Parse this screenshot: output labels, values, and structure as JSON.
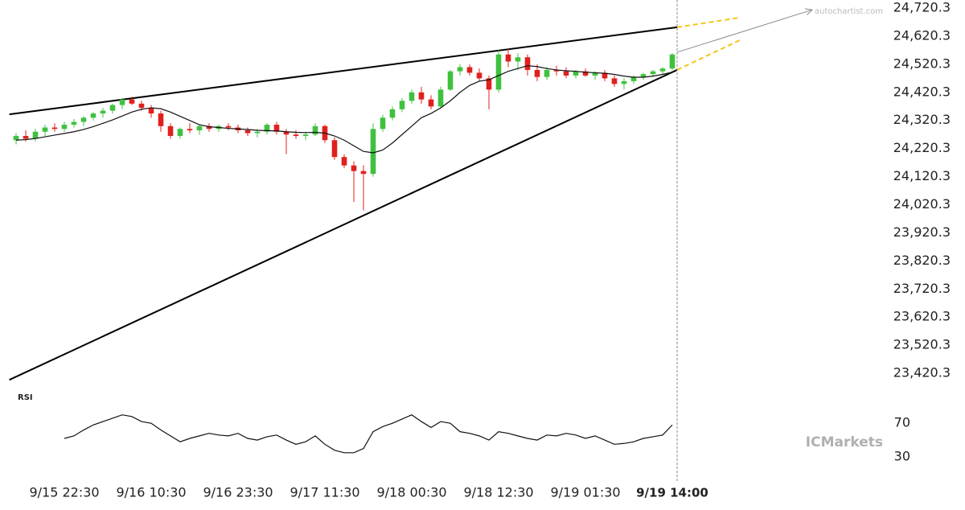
{
  "chart_data": {
    "type": "candlestick",
    "watermark": "autochartist.com",
    "brand": "ICMarkets",
    "up_color": "#3fc13f",
    "down_color": "#e0201c",
    "xlim": [
      -1,
      89
    ],
    "ylim": [
      23360.3,
      24740.3
    ],
    "xticks": [
      {
        "value": 5,
        "label": "9/15 22:30"
      },
      {
        "value": 14,
        "label": "9/16 10:30"
      },
      {
        "value": 23,
        "label": "9/16 23:30"
      },
      {
        "value": 32,
        "label": "9/17 11:30"
      },
      {
        "value": 41,
        "label": "9/18 00:30"
      },
      {
        "value": 50,
        "label": "9/18 12:30"
      },
      {
        "value": 59,
        "label": "9/19 01:30"
      },
      {
        "value": 68,
        "label": "9/19 14:00"
      }
    ],
    "yticks": [
      {
        "value": 24720.3,
        "label": "24,720.3"
      },
      {
        "value": 24620.3,
        "label": "24,620.3"
      },
      {
        "value": 24520.3,
        "label": "24,520.3"
      },
      {
        "value": 24420.3,
        "label": "24,420.3"
      },
      {
        "value": 24320.3,
        "label": "24,320.3"
      },
      {
        "value": 24220.3,
        "label": "24,220.3"
      },
      {
        "value": 24120.3,
        "label": "24,120.3"
      },
      {
        "value": 24020.3,
        "label": "24,020.3"
      },
      {
        "value": 23920.3,
        "label": "23,920.3"
      },
      {
        "value": 23820.3,
        "label": "23,820.3"
      },
      {
        "value": 23720.3,
        "label": "23,720.3"
      },
      {
        "value": 23620.3,
        "label": "23,620.3"
      },
      {
        "value": 23520.3,
        "label": "23,520.3"
      },
      {
        "value": 23420.3,
        "label": "23,420.3"
      }
    ],
    "open": [
      24250,
      24265,
      24255,
      24280,
      24295,
      24290,
      24305,
      24315,
      24330,
      24345,
      24355,
      24375,
      24395,
      24380,
      24365,
      24345,
      24300,
      24265,
      24290,
      24285,
      24300,
      24290,
      24300,
      24295,
      24285,
      24275,
      24280,
      24305,
      24280,
      24270,
      24265,
      24270,
      24300,
      24250,
      24190,
      24160,
      24140,
      24130,
      24290,
      24330,
      24360,
      24390,
      24420,
      24395,
      24370,
      24430,
      24495,
      24510,
      24490,
      24470,
      24430,
      24555,
      24530,
      24545,
      24500,
      24475,
      24500,
      24495,
      24480,
      24495,
      24480,
      24490,
      24470,
      24450,
      24460,
      24475,
      24485,
      24495,
      24505
    ],
    "high": [
      24275,
      24285,
      24290,
      24305,
      24310,
      24315,
      24325,
      24335,
      24350,
      24365,
      24380,
      24400,
      24405,
      24390,
      24375,
      24355,
      24310,
      24295,
      24310,
      24305,
      24310,
      24305,
      24310,
      24305,
      24295,
      24290,
      24310,
      24315,
      24290,
      24285,
      24280,
      24310,
      24305,
      24260,
      24200,
      24175,
      24160,
      24310,
      24340,
      24370,
      24400,
      24430,
      24440,
      24410,
      24440,
      24500,
      24520,
      24520,
      24505,
      24480,
      24570,
      24575,
      24560,
      24555,
      24520,
      24510,
      24515,
      24510,
      24500,
      24505,
      24495,
      24500,
      24480,
      24470,
      24480,
      24490,
      24500,
      24510,
      24560
    ],
    "low": [
      24235,
      24245,
      24245,
      24265,
      24280,
      24280,
      24295,
      24300,
      24320,
      24330,
      24345,
      24360,
      24375,
      24355,
      24330,
      24280,
      24255,
      24255,
      24275,
      24270,
      24280,
      24280,
      24285,
      24275,
      24265,
      24260,
      24270,
      24270,
      24200,
      24255,
      24250,
      24265,
      24240,
      24180,
      24150,
      24030,
      24000,
      24120,
      24280,
      24320,
      24350,
      24380,
      24380,
      24360,
      24365,
      24425,
      24480,
      24480,
      24460,
      24360,
      24420,
      24510,
      24500,
      24480,
      24460,
      24465,
      24480,
      24470,
      24470,
      24475,
      24465,
      24460,
      24440,
      24430,
      24450,
      24465,
      24475,
      24485,
      24500
    ],
    "close": [
      24265,
      24255,
      24280,
      24295,
      24290,
      24305,
      24315,
      24330,
      24345,
      24355,
      24375,
      24395,
      24380,
      24365,
      24345,
      24300,
      24265,
      24290,
      24285,
      24300,
      24290,
      24300,
      24295,
      24285,
      24275,
      24280,
      24305,
      24280,
      24270,
      24265,
      24270,
      24300,
      24250,
      24190,
      24160,
      24140,
      24130,
      24290,
      24330,
      24360,
      24390,
      24420,
      24395,
      24370,
      24430,
      24495,
      24510,
      24490,
      24470,
      24430,
      24555,
      24530,
      24545,
      24500,
      24475,
      24500,
      24495,
      24480,
      24495,
      24480,
      24490,
      24470,
      24450,
      24460,
      24475,
      24485,
      24495,
      24505,
      24555
    ],
    "ma": [
      24250,
      24252,
      24256,
      24262,
      24268,
      24274,
      24280,
      24288,
      24298,
      24310,
      24322,
      24336,
      24350,
      24360,
      24365,
      24362,
      24350,
      24335,
      24320,
      24305,
      24298,
      24295,
      24292,
      24290,
      24288,
      24285,
      24284,
      24283,
      24280,
      24278,
      24277,
      24278,
      24275,
      24265,
      24250,
      24230,
      24210,
      24205,
      24215,
      24240,
      24270,
      24300,
      24330,
      24345,
      24365,
      24390,
      24420,
      24445,
      24460,
      24465,
      24480,
      24495,
      24505,
      24515,
      24512,
      24505,
      24500,
      24497,
      24495,
      24492,
      24490,
      24488,
      24484,
      24478,
      24474,
      24474,
      24478,
      24484,
      24492
    ],
    "trendlines": [
      {
        "x": [
          -0.7,
          68.5
        ],
        "y": [
          24342,
          24652
        ]
      },
      {
        "x": [
          -0.7,
          68.5
        ],
        "y": [
          23397,
          24500
        ]
      }
    ],
    "projections": [
      {
        "x": [
          68.5,
          75
        ],
        "y": [
          24652,
          24686
        ]
      },
      {
        "x": [
          68.5,
          75
        ],
        "y": [
          24500,
          24606
        ]
      }
    ],
    "forecast_arrow": {
      "x": [
        68.5,
        82.5
      ],
      "y": [
        24563,
        24714
      ]
    },
    "rsi": {
      "label": "RSI",
      "ylim": [
        9,
        95
      ],
      "yticks": [
        70,
        30
      ],
      "values": [
        null,
        null,
        null,
        null,
        null,
        52,
        55,
        62,
        68,
        72,
        76,
        80,
        78,
        72,
        70,
        62,
        55,
        48,
        52,
        55,
        58,
        56,
        55,
        58,
        52,
        50,
        54,
        56,
        50,
        45,
        48,
        55,
        45,
        38,
        35,
        35,
        40,
        60,
        66,
        70,
        75,
        80,
        72,
        65,
        72,
        70,
        60,
        58,
        55,
        50,
        60,
        58,
        55,
        52,
        50,
        56,
        55,
        58,
        56,
        52,
        55,
        50,
        45,
        46,
        48,
        52,
        54,
        56,
        68
      ]
    }
  }
}
